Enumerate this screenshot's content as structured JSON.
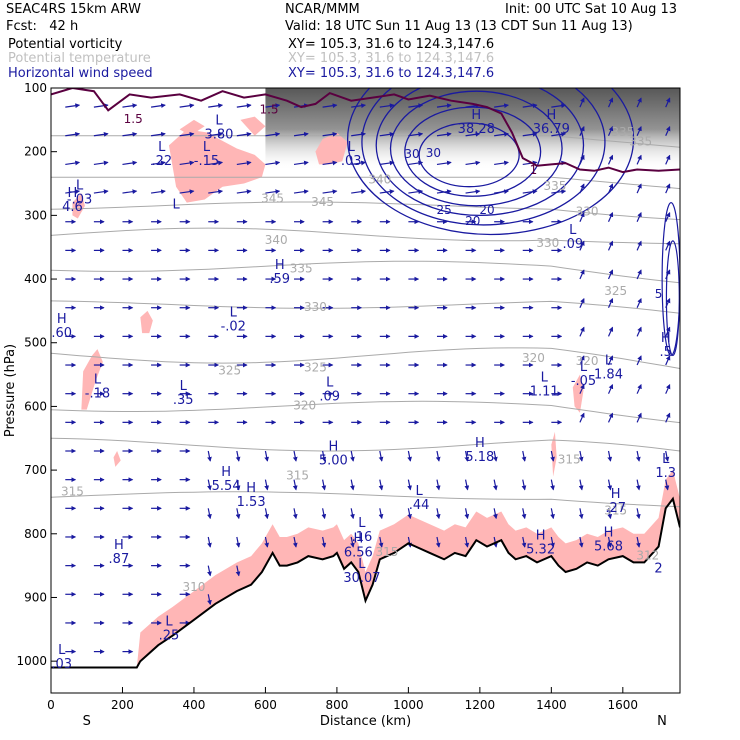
{
  "header": {
    "model": "SEAC4RS 15km ARW",
    "fcst": "Fcst:   42 h",
    "center": "NCAR/MMM",
    "init": "Init: 00 UTC Sat 10 Aug 13",
    "valid": "Valid: 18 UTC Sun 11 Aug 13 (13 CDT Sun 11 Aug 13)"
  },
  "fields": [
    {
      "name": "Potential vorticity",
      "xy": "XY= 105.3, 31.6 to 124.3,147.6",
      "color": "#000000"
    },
    {
      "name": "Potential temperature",
      "xy": "XY= 105.3, 31.6 to 124.3,147.6",
      "color": "#c0c0c0"
    },
    {
      "name": "Horizontal wind speed",
      "xy": "XY= 105.3, 31.6 to 124.3,147.6",
      "color": "#1a1aa0"
    }
  ],
  "chart_data": {
    "type": "cross-section",
    "xlabel": "Distance (km)",
    "ylabel": "Pressure (hPa)",
    "xlim": [
      0,
      1760
    ],
    "ylim": [
      1050,
      100
    ],
    "x_ticks": [
      0,
      200,
      400,
      600,
      800,
      1000,
      1200,
      1400,
      1600
    ],
    "y_ticks": [
      100,
      200,
      300,
      400,
      500,
      600,
      700,
      800,
      900,
      1000
    ],
    "x_ends": {
      "left": "S",
      "right": "N"
    },
    "terrain": [
      [
        0,
        1010
      ],
      [
        240,
        1010
      ],
      [
        250,
        1000
      ],
      [
        300,
        975
      ],
      [
        340,
        960
      ],
      [
        400,
        935
      ],
      [
        460,
        910
      ],
      [
        520,
        890
      ],
      [
        560,
        880
      ],
      [
        590,
        860
      ],
      [
        620,
        830
      ],
      [
        640,
        850
      ],
      [
        660,
        850
      ],
      [
        690,
        845
      ],
      [
        720,
        835
      ],
      [
        760,
        840
      ],
      [
        790,
        835
      ],
      [
        800,
        830
      ],
      [
        820,
        855
      ],
      [
        840,
        845
      ],
      [
        860,
        860
      ],
      [
        880,
        905
      ],
      [
        900,
        880
      ],
      [
        920,
        840
      ],
      [
        960,
        830
      ],
      [
        1000,
        815
      ],
      [
        1020,
        820
      ],
      [
        1060,
        830
      ],
      [
        1100,
        840
      ],
      [
        1130,
        830
      ],
      [
        1160,
        835
      ],
      [
        1190,
        810
      ],
      [
        1220,
        820
      ],
      [
        1260,
        810
      ],
      [
        1280,
        830
      ],
      [
        1300,
        840
      ],
      [
        1330,
        835
      ],
      [
        1360,
        845
      ],
      [
        1400,
        835
      ],
      [
        1420,
        850
      ],
      [
        1440,
        860
      ],
      [
        1470,
        855
      ],
      [
        1500,
        845
      ],
      [
        1530,
        850
      ],
      [
        1560,
        840
      ],
      [
        1600,
        835
      ],
      [
        1630,
        845
      ],
      [
        1660,
        845
      ],
      [
        1700,
        820
      ],
      [
        1720,
        760
      ],
      [
        1740,
        745
      ],
      [
        1760,
        790
      ]
    ],
    "theta_labels": [
      {
        "x": 920,
        "p": 250,
        "v": "340"
      },
      {
        "x": 1410,
        "p": 260,
        "v": "335"
      },
      {
        "x": 1500,
        "p": 300,
        "v": "330"
      },
      {
        "x": 620,
        "p": 280,
        "v": "345"
      },
      {
        "x": 760,
        "p": 285,
        "v": "345"
      },
      {
        "x": 630,
        "p": 345,
        "v": "340"
      },
      {
        "x": 1390,
        "p": 350,
        "v": "330"
      },
      {
        "x": 700,
        "p": 390,
        "v": "335"
      },
      {
        "x": 1580,
        "p": 425,
        "v": "325"
      },
      {
        "x": 740,
        "p": 450,
        "v": "330"
      },
      {
        "x": 500,
        "p": 550,
        "v": "325"
      },
      {
        "x": 740,
        "p": 545,
        "v": "325"
      },
      {
        "x": 1350,
        "p": 530,
        "v": "320"
      },
      {
        "x": 1500,
        "p": 535,
        "v": "320"
      },
      {
        "x": 710,
        "p": 605,
        "v": "320"
      },
      {
        "x": 1450,
        "p": 690,
        "v": "315"
      },
      {
        "x": 690,
        "p": 715,
        "v": "315"
      },
      {
        "x": 60,
        "p": 740,
        "v": "315"
      },
      {
        "x": 1580,
        "p": 770,
        "v": "315"
      },
      {
        "x": 940,
        "p": 835,
        "v": "315"
      },
      {
        "x": 1670,
        "p": 840,
        "v": "312"
      },
      {
        "x": 400,
        "p": 890,
        "v": "310"
      },
      {
        "x": 1600,
        "p": 175,
        "v": "335"
      },
      {
        "x": 1650,
        "p": 190,
        "v": "335"
      }
    ],
    "ws_labels": [
      {
        "x": 1010,
        "p": 210,
        "v": "30"
      },
      {
        "x": 1070,
        "p": 208,
        "v": "30"
      },
      {
        "x": 1100,
        "p": 298,
        "v": "25"
      },
      {
        "x": 1180,
        "p": 315,
        "v": "20"
      },
      {
        "x": 1220,
        "p": 298,
        "v": "20"
      },
      {
        "x": 1700,
        "p": 430,
        "v": "5"
      }
    ],
    "pv_labels": [
      {
        "x": 230,
        "p": 155,
        "v": "1.5"
      },
      {
        "x": 1350,
        "p": 235,
        "v": "1"
      },
      {
        "x": 610,
        "p": 140,
        "v": "1.5"
      }
    ],
    "markers": [
      {
        "x": 470,
        "p": 168,
        "t": "L",
        "v": "3.80"
      },
      {
        "x": 1190,
        "p": 160,
        "t": "H",
        "v": "38.28"
      },
      {
        "x": 1400,
        "p": 160,
        "t": "H",
        "v": "36.79"
      },
      {
        "x": 435,
        "p": 210,
        "t": "L",
        "v": "-.15"
      },
      {
        "x": 840,
        "p": 210,
        "t": "L",
        "v": ".03"
      },
      {
        "x": 310,
        "p": 210,
        "t": "L",
        "v": ".22"
      },
      {
        "x": 60,
        "p": 282,
        "t": "H",
        "v": "4.6"
      },
      {
        "x": 80,
        "p": 270,
        "t": "L",
        "v": "-.03"
      },
      {
        "x": 350,
        "p": 300,
        "t": "L",
        "v": ""
      },
      {
        "x": 1460,
        "p": 340,
        "t": "L",
        "v": ".09"
      },
      {
        "x": 640,
        "p": 395,
        "t": "H",
        "v": ".59"
      },
      {
        "x": 510,
        "p": 470,
        "t": "L",
        "v": "-.02"
      },
      {
        "x": 30,
        "p": 480,
        "t": "H",
        "v": ".60"
      },
      {
        "x": 130,
        "p": 575,
        "t": "L",
        "v": "-.18"
      },
      {
        "x": 370,
        "p": 585,
        "t": "L",
        "v": ".35"
      },
      {
        "x": 780,
        "p": 580,
        "t": "L",
        "v": ".09"
      },
      {
        "x": 1380,
        "p": 572,
        "t": "L",
        "v": "1.11"
      },
      {
        "x": 1490,
        "p": 555,
        "t": "L",
        "v": "-.05"
      },
      {
        "x": 1560,
        "p": 545,
        "t": "L",
        "v": "1.84"
      },
      {
        "x": 1720,
        "p": 510,
        "t": "H",
        "v": ".5"
      },
      {
        "x": 790,
        "p": 680,
        "t": "H",
        "v": "5.00"
      },
      {
        "x": 1200,
        "p": 675,
        "t": "H",
        "v": "5.18"
      },
      {
        "x": 490,
        "p": 720,
        "t": "H",
        "v": "5.54"
      },
      {
        "x": 560,
        "p": 745,
        "t": "H",
        "v": "1.53"
      },
      {
        "x": 1030,
        "p": 750,
        "t": "L",
        "v": ".44"
      },
      {
        "x": 1580,
        "p": 755,
        "t": "H",
        "v": ".27"
      },
      {
        "x": 1720,
        "p": 700,
        "t": "L",
        "v": "1.3"
      },
      {
        "x": 870,
        "p": 800,
        "t": "L",
        "v": ".16"
      },
      {
        "x": 860,
        "p": 825,
        "t": "H",
        "v": "6.56"
      },
      {
        "x": 1370,
        "p": 820,
        "t": "H",
        "v": "5.32"
      },
      {
        "x": 1560,
        "p": 815,
        "t": "H",
        "v": "5.68"
      },
      {
        "x": 190,
        "p": 835,
        "t": "H",
        "v": ".87"
      },
      {
        "x": 870,
        "p": 865,
        "t": "L",
        "v": "30.07"
      },
      {
        "x": 330,
        "p": 955,
        "t": "L",
        "v": ".25"
      },
      {
        "x": 30,
        "p": 1000,
        "t": "L",
        "v": ".03"
      },
      {
        "x": 1700,
        "p": 850,
        "t": "",
        "v": "2"
      }
    ],
    "pv_pink_regions": [
      [
        [
          330,
          190
        ],
        [
          380,
          165
        ],
        [
          440,
          170
        ],
        [
          470,
          180
        ],
        [
          520,
          195
        ],
        [
          570,
          205
        ],
        [
          600,
          220
        ],
        [
          590,
          240
        ],
        [
          540,
          250
        ],
        [
          480,
          255
        ],
        [
          430,
          275
        ],
        [
          380,
          280
        ],
        [
          350,
          255
        ]
      ],
      [
        [
          360,
          165
        ],
        [
          400,
          150
        ],
        [
          430,
          160
        ],
        [
          390,
          175
        ]
      ],
      [
        [
          530,
          150
        ],
        [
          570,
          145
        ],
        [
          600,
          160
        ],
        [
          570,
          175
        ]
      ],
      [
        [
          740,
          200
        ],
        [
          760,
          180
        ],
        [
          800,
          170
        ],
        [
          830,
          185
        ],
        [
          815,
          215
        ],
        [
          780,
          220
        ],
        [
          750,
          220
        ]
      ],
      [
        [
          60,
          280
        ],
        [
          85,
          265
        ],
        [
          95,
          285
        ],
        [
          75,
          305
        ],
        [
          60,
          300
        ]
      ],
      [
        [
          250,
          460
        ],
        [
          270,
          450
        ],
        [
          285,
          465
        ],
        [
          275,
          485
        ],
        [
          255,
          485
        ]
      ],
      [
        [
          90,
          545
        ],
        [
          115,
          520
        ],
        [
          130,
          510
        ],
        [
          145,
          530
        ],
        [
          125,
          560
        ],
        [
          100,
          605
        ],
        [
          85,
          605
        ]
      ],
      [
        [
          175,
          680
        ],
        [
          185,
          670
        ],
        [
          195,
          685
        ],
        [
          180,
          695
        ]
      ],
      [
        [
          1460,
          570
        ],
        [
          1480,
          550
        ],
        [
          1490,
          575
        ],
        [
          1480,
          610
        ],
        [
          1465,
          600
        ]
      ],
      [
        [
          1400,
          660
        ],
        [
          1410,
          640
        ],
        [
          1415,
          680
        ],
        [
          1405,
          710
        ]
      ]
    ]
  }
}
